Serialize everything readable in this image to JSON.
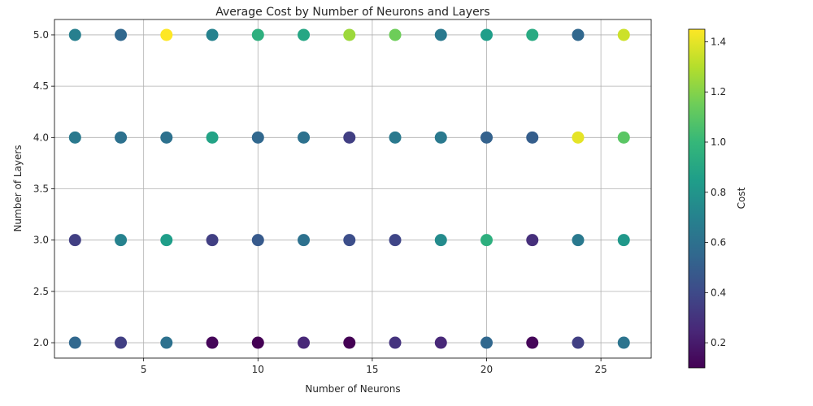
{
  "chart_data": {
    "type": "scatter",
    "title": "Average Cost by Number of Neurons and Layers",
    "xlabel": "Number of Neurons",
    "ylabel": "Number of Layers",
    "xlim": [
      1.1,
      27.2
    ],
    "ylim": [
      1.85,
      5.15
    ],
    "xticks": [
      5,
      10,
      15,
      20,
      25
    ],
    "yticks": [
      2.0,
      2.5,
      3.0,
      3.5,
      4.0,
      4.5,
      5.0
    ],
    "grid": true,
    "colormap": "viridis",
    "colorbar": {
      "label": "Cost",
      "range": [
        0.1,
        1.45
      ],
      "ticks": [
        0.2,
        0.4,
        0.6,
        0.8,
        1.0,
        1.2,
        1.4
      ]
    },
    "neurons": [
      2,
      4,
      6,
      8,
      10,
      12,
      14,
      16,
      18,
      20,
      22,
      24,
      26
    ],
    "layers": [
      2,
      3,
      4,
      5
    ],
    "cost": {
      "2": [
        0.55,
        0.35,
        0.6,
        0.12,
        0.1,
        0.25,
        0.1,
        0.3,
        0.25,
        0.55,
        0.12,
        0.35,
        0.62
      ],
      "3": [
        0.35,
        0.7,
        0.85,
        0.35,
        0.48,
        0.6,
        0.42,
        0.38,
        0.75,
        0.95,
        0.28,
        0.65,
        0.82
      ],
      "4": [
        0.65,
        0.6,
        0.6,
        0.88,
        0.55,
        0.6,
        0.35,
        0.65,
        0.65,
        0.52,
        0.5,
        1.4,
        1.1
      ],
      "5": [
        0.68,
        0.55,
        1.45,
        0.7,
        0.95,
        0.9,
        1.25,
        1.15,
        0.65,
        0.85,
        0.92,
        0.55,
        1.35
      ]
    }
  }
}
